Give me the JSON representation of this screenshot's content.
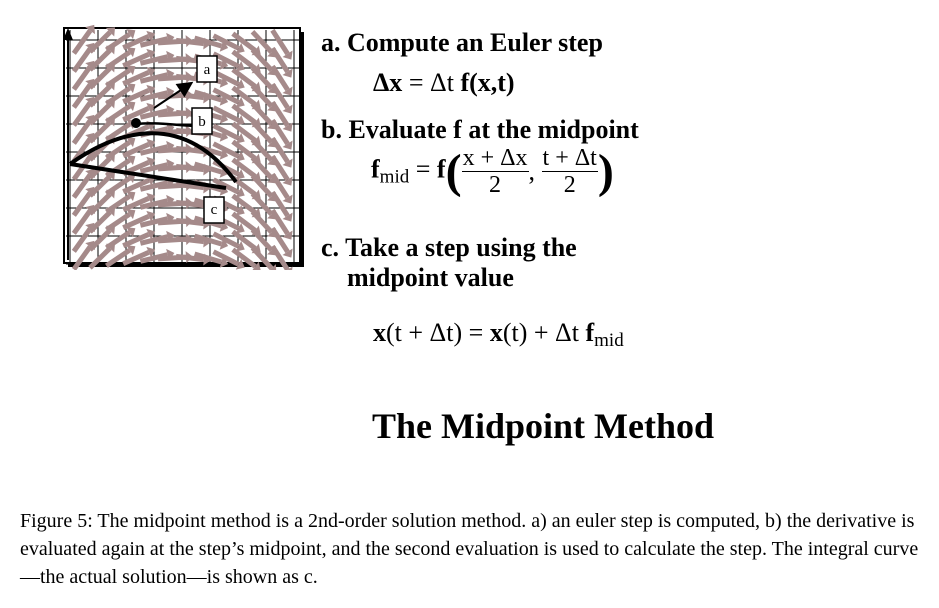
{
  "figure": {
    "labels": {
      "a": "a",
      "b": "b",
      "c": "c"
    }
  },
  "steps": {
    "a": {
      "title": "a. Compute an Euler step",
      "eq_lhs": "Δx",
      "eq_eq": "=",
      "eq_dt": "Δt",
      "eq_f": "f",
      "eq_args": "(x,t)"
    },
    "b": {
      "title": "b. Evaluate f at the midpoint",
      "eq_f": "f",
      "eq_sub": "mid",
      "eq_eq": "=",
      "eq_f2": "f",
      "frac1_num": "x + Δx",
      "frac1_den": "2",
      "comma": ",",
      "frac2_num": "t + Δt",
      "frac2_den": "2"
    },
    "c": {
      "title_line1": "c. Take a step using the",
      "title_line2": "midpoint value",
      "eq_x1": "x",
      "eq_arg1": "(t + Δt) =",
      "eq_x2": "x",
      "eq_arg2": "(t) + Δt",
      "eq_f": "f",
      "eq_sub": "mid"
    }
  },
  "title": "The Midpoint Method",
  "caption": "Figure 5: The midpoint method is a 2nd-order solution method. a) an euler step is computed, b) the derivative is evaluated again at the step’s midpoint, and the second evaluation is used to calculate the step. The integral curve—the actual solution—is shown as c."
}
